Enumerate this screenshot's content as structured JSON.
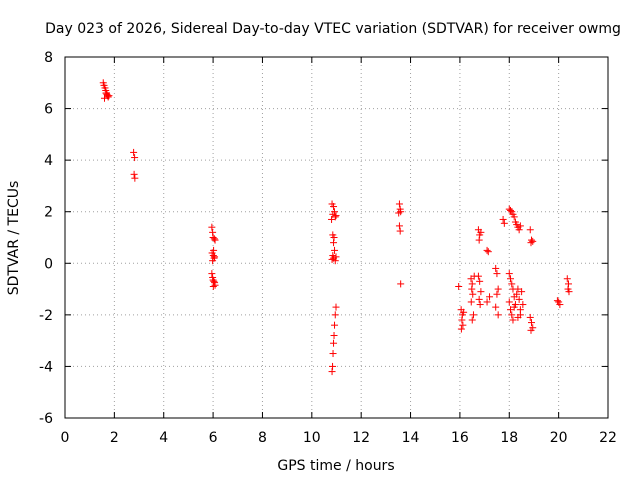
{
  "chart_data": {
    "type": "scatter",
    "title": "Day 023 of 2026, Sidereal Day-to-day VTEC variation (SDTVAR) for receiver owmg",
    "xlabel": "GPS time / hours",
    "ylabel": "SDTVAR / TECUs",
    "xlim": [
      0,
      22
    ],
    "ylim": [
      -6,
      8
    ],
    "xticks": [
      0,
      2,
      4,
      6,
      8,
      10,
      12,
      14,
      16,
      18,
      20,
      22
    ],
    "yticks": [
      -6,
      -4,
      -2,
      0,
      2,
      4,
      6,
      8
    ],
    "grid": true,
    "marker": "+",
    "color": "#ff0000",
    "series": [
      {
        "name": "SDTVAR",
        "points": [
          [
            1.55,
            7.0
          ],
          [
            1.58,
            6.9
          ],
          [
            1.62,
            6.8
          ],
          [
            1.65,
            6.7
          ],
          [
            1.68,
            6.6
          ],
          [
            1.7,
            6.55
          ],
          [
            1.72,
            6.5
          ],
          [
            1.75,
            6.45
          ],
          [
            1.6,
            6.4
          ],
          [
            1.78,
            6.5
          ],
          [
            1.66,
            6.6
          ],
          [
            2.78,
            4.3
          ],
          [
            2.82,
            4.1
          ],
          [
            2.8,
            3.45
          ],
          [
            2.83,
            3.3
          ],
          [
            5.95,
            1.4
          ],
          [
            5.98,
            1.2
          ],
          [
            6.0,
            1.0
          ],
          [
            6.05,
            0.95
          ],
          [
            6.08,
            0.9
          ],
          [
            6.02,
            0.5
          ],
          [
            5.96,
            0.4
          ],
          [
            6.01,
            0.3
          ],
          [
            6.04,
            0.2
          ],
          [
            5.98,
            0.1
          ],
          [
            6.06,
            0.25
          ],
          [
            5.95,
            -0.4
          ],
          [
            5.98,
            -0.55
          ],
          [
            6.0,
            -0.65
          ],
          [
            6.03,
            -0.7
          ],
          [
            6.06,
            -0.75
          ],
          [
            6.08,
            -0.85
          ],
          [
            6.01,
            -0.9
          ],
          [
            10.82,
            2.3
          ],
          [
            10.88,
            2.2
          ],
          [
            10.92,
            2.0
          ],
          [
            10.85,
            1.9
          ],
          [
            10.95,
            1.8
          ],
          [
            10.8,
            1.7
          ],
          [
            10.98,
            1.85
          ],
          [
            10.85,
            1.1
          ],
          [
            10.9,
            1.0
          ],
          [
            10.88,
            0.8
          ],
          [
            10.92,
            0.5
          ],
          [
            10.85,
            0.3
          ],
          [
            10.88,
            0.2
          ],
          [
            10.95,
            0.1
          ],
          [
            10.82,
            0.15
          ],
          [
            10.98,
            0.25
          ],
          [
            10.98,
            -1.7
          ],
          [
            10.95,
            -2.0
          ],
          [
            10.92,
            -2.4
          ],
          [
            10.9,
            -2.8
          ],
          [
            10.88,
            -3.1
          ],
          [
            10.86,
            -3.5
          ],
          [
            10.84,
            -4.0
          ],
          [
            10.82,
            -4.2
          ],
          [
            13.55,
            2.3
          ],
          [
            13.58,
            2.1
          ],
          [
            13.6,
            2.0
          ],
          [
            13.52,
            1.95
          ],
          [
            13.55,
            1.45
          ],
          [
            13.58,
            1.25
          ],
          [
            13.6,
            -0.8
          ],
          [
            15.95,
            -0.9
          ],
          [
            16.05,
            -1.8
          ],
          [
            16.1,
            -2.0
          ],
          [
            16.08,
            -2.2
          ],
          [
            16.12,
            -2.4
          ],
          [
            16.06,
            -2.55
          ],
          [
            16.15,
            -1.9
          ],
          [
            16.45,
            -0.6
          ],
          [
            16.5,
            -0.8
          ],
          [
            16.48,
            -1.0
          ],
          [
            16.52,
            -1.2
          ],
          [
            16.46,
            -1.5
          ],
          [
            16.55,
            -2.0
          ],
          [
            16.5,
            -2.2
          ],
          [
            16.58,
            -0.5
          ],
          [
            16.75,
            1.3
          ],
          [
            16.8,
            1.1
          ],
          [
            16.78,
            0.9
          ],
          [
            16.85,
            1.2
          ],
          [
            16.75,
            -0.5
          ],
          [
            16.8,
            -0.7
          ],
          [
            16.85,
            -1.1
          ],
          [
            16.78,
            -1.4
          ],
          [
            16.82,
            -1.6
          ],
          [
            17.1,
            0.5
          ],
          [
            17.15,
            0.45
          ],
          [
            17.2,
            -1.3
          ],
          [
            17.1,
            -1.5
          ],
          [
            17.45,
            -0.2
          ],
          [
            17.5,
            -0.4
          ],
          [
            17.55,
            -1.0
          ],
          [
            17.5,
            -1.2
          ],
          [
            17.45,
            -1.7
          ],
          [
            17.55,
            -2.0
          ],
          [
            17.75,
            1.7
          ],
          [
            17.8,
            1.55
          ],
          [
            18.0,
            2.1
          ],
          [
            18.05,
            2.05
          ],
          [
            18.1,
            2.0
          ],
          [
            18.15,
            1.9
          ],
          [
            18.2,
            1.8
          ],
          [
            18.25,
            1.6
          ],
          [
            18.3,
            1.5
          ],
          [
            18.35,
            1.4
          ],
          [
            18.4,
            1.3
          ],
          [
            18.45,
            1.45
          ],
          [
            18.0,
            -0.4
          ],
          [
            18.05,
            -0.6
          ],
          [
            18.1,
            -0.8
          ],
          [
            18.15,
            -1.0
          ],
          [
            18.2,
            -1.3
          ],
          [
            18.25,
            -1.6
          ],
          [
            18.0,
            -1.5
          ],
          [
            18.05,
            -1.8
          ],
          [
            18.1,
            -2.0
          ],
          [
            18.15,
            -2.2
          ],
          [
            18.2,
            -1.7
          ],
          [
            18.3,
            -1.2
          ],
          [
            18.35,
            -1.0
          ],
          [
            18.4,
            -1.4
          ],
          [
            18.45,
            -1.8
          ],
          [
            18.5,
            -1.1
          ],
          [
            18.55,
            -1.6
          ],
          [
            18.35,
            -2.1
          ],
          [
            18.45,
            -2.0
          ],
          [
            18.85,
            1.3
          ],
          [
            18.9,
            0.9
          ],
          [
            18.95,
            0.85
          ],
          [
            18.88,
            0.8
          ],
          [
            18.85,
            -2.1
          ],
          [
            18.9,
            -2.3
          ],
          [
            18.95,
            -2.5
          ],
          [
            18.88,
            -2.6
          ],
          [
            19.95,
            -1.45
          ],
          [
            20.0,
            -1.5
          ],
          [
            20.05,
            -1.6
          ],
          [
            20.35,
            -0.6
          ],
          [
            20.4,
            -0.8
          ],
          [
            20.38,
            -1.0
          ],
          [
            20.42,
            -1.1
          ]
        ]
      }
    ]
  }
}
